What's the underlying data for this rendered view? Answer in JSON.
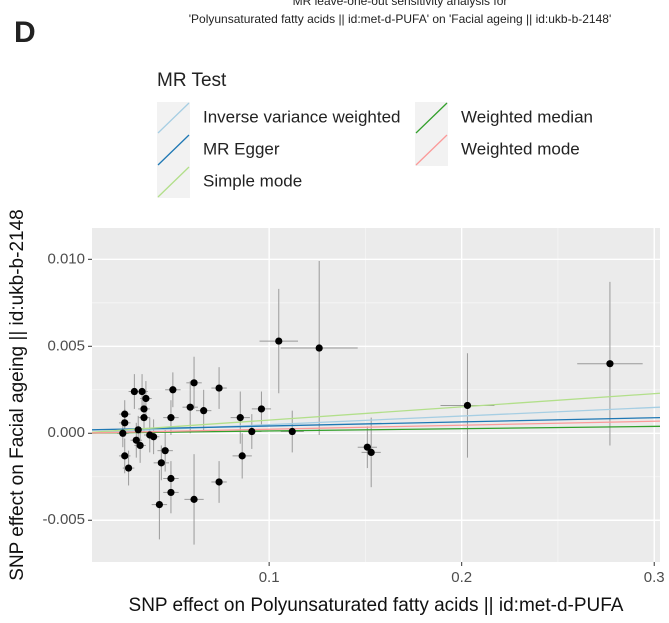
{
  "chart_data": {
    "type": "scatter",
    "panel_label": "D",
    "title": "MR leave-one-out sensitivity analysis for",
    "subtitle": "'Polyunsaturated fatty acids || id:met-d-PUFA' on 'Facial ageing || id:ukb-b-2148'",
    "legend_title": "MR Test",
    "x_label": "SNP effect on Polyunsaturated fatty acids || id:met-d-PUFA",
    "y_label": "SNP effect on Facial ageing || id:ukb-b-2148",
    "xlim": [
      0.008,
      0.303
    ],
    "ylim": [
      -0.0074,
      0.0118
    ],
    "xticks": [
      0.1,
      0.2,
      0.3
    ],
    "yticks": [
      {
        "value": -0.005,
        "label": "-0.005"
      },
      {
        "value": 0,
        "label": "0.000"
      },
      {
        "value": 0.005,
        "label": "0.005"
      },
      {
        "value": 0.01,
        "label": "0.010"
      }
    ],
    "grid": true,
    "lines": [
      {
        "name": "Inverse variance weighted",
        "color": "#a6cee3",
        "x": [
          0.008,
          0.303
        ],
        "y": [
          4e-05,
          0.0015
        ]
      },
      {
        "name": "MR Egger",
        "color": "#1f78b4",
        "x": [
          0.008,
          0.303
        ],
        "y": [
          0.0002,
          0.0009
        ]
      },
      {
        "name": "Simple mode",
        "color": "#b2df8a",
        "x": [
          0.008,
          0.303
        ],
        "y": [
          6e-05,
          0.0023
        ]
      },
      {
        "name": "Weighted median",
        "color": "#33a02c",
        "x": [
          0.008,
          0.303
        ],
        "y": [
          1e-05,
          0.0004
        ]
      },
      {
        "name": "Weighted mode",
        "color": "#fb9a99",
        "x": [
          0.008,
          0.303
        ],
        "y": [
          2e-05,
          0.0007
        ]
      }
    ],
    "points": {
      "color": "#000000",
      "x": [
        0.277,
        0.203,
        0.126,
        0.105,
        0.112,
        0.151,
        0.153,
        0.096,
        0.091,
        0.085,
        0.086,
        0.074,
        0.074,
        0.066,
        0.061,
        0.059,
        0.061,
        0.05,
        0.049,
        0.049,
        0.049,
        0.046,
        0.044,
        0.043,
        0.04,
        0.038,
        0.036,
        0.035,
        0.035,
        0.034,
        0.033,
        0.032,
        0.03,
        0.031,
        0.027,
        0.025,
        0.025,
        0.025,
        0.024
      ],
      "y": [
        0.004,
        0.0016,
        0.0049,
        0.0053,
        0.0001,
        -0.0008,
        -0.0011,
        0.0014,
        0.0001,
        0.0009,
        -0.0013,
        0.0026,
        -0.0028,
        0.0013,
        0.0029,
        0.0015,
        -0.0038,
        0.0025,
        0.0009,
        -0.0026,
        -0.0034,
        -0.001,
        -0.0017,
        -0.0041,
        -0.0002,
        -0.0001,
        0.002,
        0.0014,
        0.0009,
        0.0024,
        -0.0007,
        0.0002,
        0.0024,
        -0.0004,
        -0.002,
        -0.0013,
        0.0011,
        0.0006,
        0.0
      ],
      "xerr": [
        0.017,
        0.014,
        0.02,
        0.01,
        0.006,
        0.005,
        0.005,
        0.005,
        0.005,
        0.005,
        0.005,
        0.004,
        0.004,
        0.004,
        0.004,
        0.004,
        0.005,
        0.004,
        0.004,
        0.004,
        0.004,
        0.004,
        0.004,
        0.004,
        0.003,
        0.003,
        0.003,
        0.003,
        0.003,
        0.003,
        0.003,
        0.003,
        0.003,
        0.003,
        0.003,
        0.003,
        0.003,
        0.003,
        0.003
      ],
      "yerr": [
        0.0047,
        0.003,
        0.005,
        0.003,
        0.0012,
        0.0012,
        0.002,
        0.001,
        0.001,
        0.0015,
        0.0013,
        0.0012,
        0.0012,
        0.0012,
        0.0015,
        0.0015,
        0.0026,
        0.001,
        0.001,
        0.001,
        0.0012,
        0.0012,
        0.001,
        0.002,
        0.001,
        0.001,
        0.001,
        0.0008,
        0.0008,
        0.001,
        0.001,
        0.0008,
        0.001,
        0.001,
        0.001,
        0.001,
        0.0008,
        0.0008,
        0.0008
      ]
    }
  }
}
